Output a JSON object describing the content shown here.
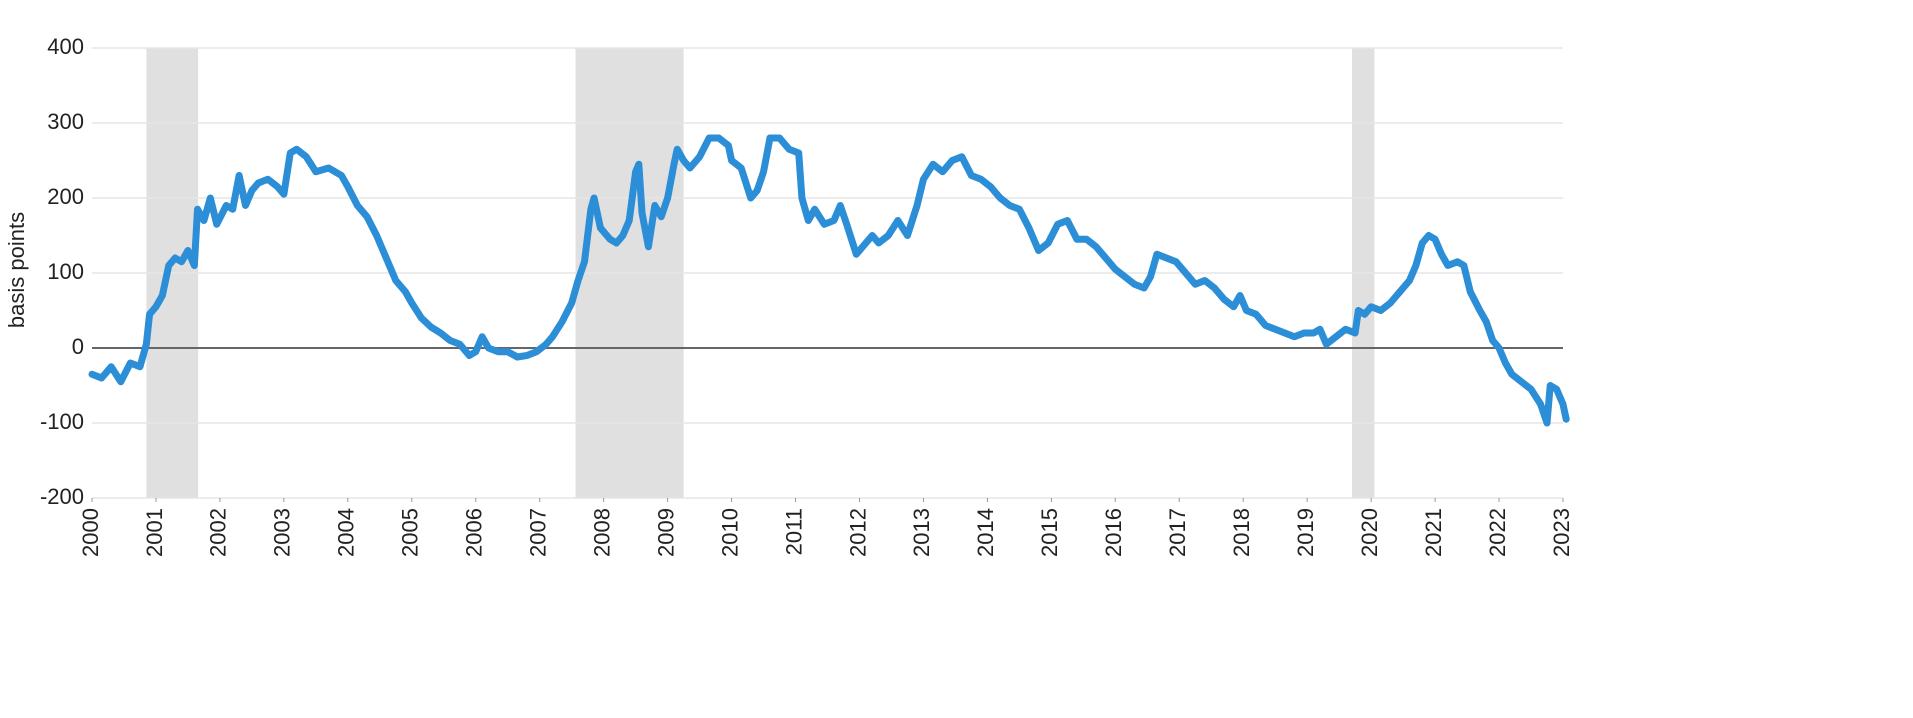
{
  "chart_data": {
    "type": "line",
    "y_label": "basis points",
    "color": "#2b8ed6",
    "shade_color": "#e0e0e0",
    "shaded_regions": [
      [
        2000.85,
        2001.66
      ],
      [
        2007.56,
        2009.25
      ],
      [
        2019.7,
        2020.05
      ]
    ],
    "xlim": [
      2000,
      2023
    ],
    "xticks": [
      2000,
      2001,
      2002,
      2003,
      2004,
      2005,
      2006,
      2007,
      2008,
      2009,
      2010,
      2011,
      2012,
      2013,
      2014,
      2015,
      2016,
      2017,
      2018,
      2019,
      2020,
      2021,
      2022,
      2023
    ],
    "ylim": [
      -200,
      400
    ],
    "yticks": [
      -200,
      -100,
      0,
      100,
      200,
      300,
      400
    ],
    "grid": true,
    "x": [
      2000.0,
      2000.15,
      2000.3,
      2000.45,
      2000.6,
      2000.75,
      2000.85,
      2000.9,
      2001.0,
      2001.1,
      2001.2,
      2001.3,
      2001.4,
      2001.5,
      2001.6,
      2001.65,
      2001.75,
      2001.85,
      2001.95,
      2002.1,
      2002.2,
      2002.3,
      2002.4,
      2002.5,
      2002.6,
      2002.75,
      2002.9,
      2003.0,
      2003.1,
      2003.2,
      2003.35,
      2003.5,
      2003.7,
      2003.9,
      2004.0,
      2004.15,
      2004.3,
      2004.45,
      2004.6,
      2004.75,
      2004.9,
      2005.0,
      2005.15,
      2005.3,
      2005.45,
      2005.6,
      2005.75,
      2005.9,
      2006.0,
      2006.1,
      2006.2,
      2006.35,
      2006.5,
      2006.65,
      2006.8,
      2006.95,
      2007.1,
      2007.2,
      2007.35,
      2007.5,
      2007.6,
      2007.7,
      2007.8,
      2007.85,
      2007.95,
      2008.1,
      2008.2,
      2008.3,
      2008.4,
      2008.5,
      2008.55,
      2008.6,
      2008.7,
      2008.8,
      2008.9,
      2009.0,
      2009.1,
      2009.15,
      2009.25,
      2009.35,
      2009.5,
      2009.65,
      2009.8,
      2009.95,
      2010.0,
      2010.15,
      2010.3,
      2010.4,
      2010.5,
      2010.6,
      2010.75,
      2010.9,
      2011.05,
      2011.1,
      2011.2,
      2011.3,
      2011.45,
      2011.6,
      2011.7,
      2011.8,
      2011.95,
      2012.1,
      2012.2,
      2012.3,
      2012.45,
      2012.6,
      2012.75,
      2012.9,
      2013.0,
      2013.15,
      2013.3,
      2013.45,
      2013.6,
      2013.75,
      2013.9,
      2014.05,
      2014.2,
      2014.35,
      2014.5,
      2014.65,
      2014.8,
      2014.95,
      2015.1,
      2015.25,
      2015.4,
      2015.55,
      2015.7,
      2015.85,
      2016.0,
      2016.15,
      2016.3,
      2016.45,
      2016.55,
      2016.65,
      2016.8,
      2016.95,
      2017.1,
      2017.25,
      2017.4,
      2017.55,
      2017.7,
      2017.85,
      2017.95,
      2018.05,
      2018.2,
      2018.35,
      2018.5,
      2018.65,
      2018.8,
      2018.95,
      2019.1,
      2019.2,
      2019.3,
      2019.45,
      2019.6,
      2019.75,
      2019.8,
      2019.9,
      2020.0,
      2020.15,
      2020.3,
      2020.45,
      2020.6,
      2020.7,
      2020.8,
      2020.9,
      2021.0,
      2021.1,
      2021.2,
      2021.35,
      2021.45,
      2021.55,
      2021.7,
      2021.8,
      2021.9,
      2022.0,
      2022.1,
      2022.2,
      2022.35,
      2022.5,
      2022.65,
      2022.75,
      2022.8,
      2022.9,
      2023.0,
      2023.05
    ],
    "values": [
      -35,
      -40,
      -25,
      -45,
      -20,
      -25,
      5,
      45,
      55,
      70,
      110,
      120,
      115,
      130,
      110,
      185,
      170,
      200,
      165,
      190,
      185,
      230,
      190,
      210,
      220,
      225,
      215,
      205,
      260,
      265,
      255,
      235,
      240,
      230,
      215,
      190,
      175,
      150,
      120,
      90,
      75,
      60,
      40,
      28,
      20,
      10,
      5,
      -10,
      -5,
      15,
      0,
      -5,
      -5,
      -12,
      -10,
      -5,
      5,
      15,
      35,
      60,
      90,
      115,
      185,
      200,
      160,
      145,
      140,
      150,
      170,
      235,
      245,
      180,
      135,
      190,
      175,
      200,
      245,
      265,
      250,
      240,
      255,
      280,
      280,
      270,
      250,
      240,
      200,
      210,
      235,
      280,
      280,
      265,
      260,
      200,
      170,
      185,
      165,
      170,
      190,
      165,
      125,
      140,
      150,
      140,
      150,
      170,
      150,
      190,
      225,
      245,
      235,
      250,
      255,
      230,
      225,
      215,
      200,
      190,
      185,
      160,
      130,
      140,
      165,
      170,
      145,
      145,
      135,
      120,
      105,
      95,
      85,
      80,
      95,
      125,
      120,
      115,
      100,
      85,
      90,
      80,
      65,
      55,
      70,
      50,
      45,
      30,
      25,
      20,
      15,
      20,
      20,
      25,
      5,
      15,
      25,
      20,
      50,
      45,
      55,
      50,
      60,
      75,
      90,
      110,
      140,
      150,
      145,
      125,
      110,
      115,
      110,
      75,
      50,
      35,
      10,
      0,
      -20,
      -35,
      -45,
      -55,
      -75,
      -100,
      -50,
      -55,
      -75,
      -95
    ]
  }
}
